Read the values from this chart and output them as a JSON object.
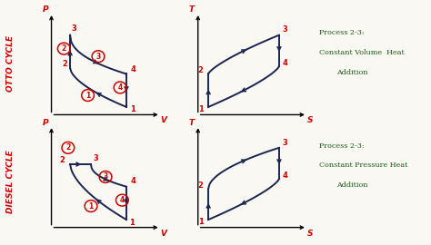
{
  "bg_color": "#faf8f2",
  "curve_color": "#1a2550",
  "label_color": "#cc0000",
  "otto_label": "OTTO CYCLE",
  "diesel_label": "DIESEL CYCLE",
  "text_color": "#1a5a1a",
  "top_right_lines": [
    "Process 2-3:",
    "Constant Volume  Heat",
    "Addition"
  ],
  "bot_right_lines": [
    "Process 2-3:",
    "Constant Pressure Heat",
    "Addition"
  ],
  "axis_label_color": "#cc0000"
}
